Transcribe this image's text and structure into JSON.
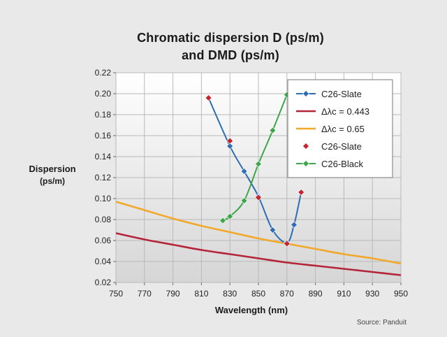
{
  "chart_data": {
    "type": "line",
    "title": "Chromatic dispersion D (ps/m)",
    "subtitle": "and DMD (ps/m)",
    "ylabel": "Dispersion",
    "ylabel_unit": "(ps/m)",
    "xlabel": "Wavelength (nm)",
    "source": "Source: Panduit",
    "xlim": [
      750,
      950
    ],
    "ylim": [
      0.02,
      0.22
    ],
    "x_ticks": [
      750,
      770,
      790,
      810,
      830,
      850,
      870,
      890,
      910,
      930,
      950
    ],
    "y_ticks": [
      0.02,
      0.04,
      0.06,
      0.08,
      0.1,
      0.12,
      0.14,
      0.16,
      0.18,
      0.2,
      0.22
    ],
    "grid": true,
    "legend_position": "top-right",
    "series": [
      {
        "name": "C26-Slate",
        "style": "line-markers",
        "marker": "diamond",
        "color": "#2e6db0",
        "x": [
          815,
          830,
          840,
          850,
          860,
          870,
          875,
          880
        ],
        "y": [
          0.196,
          0.15,
          0.126,
          0.102,
          0.07,
          0.058,
          0.075,
          0.106
        ]
      },
      {
        "name": "Δλc = 0.443",
        "style": "line",
        "color": "#b5253a",
        "x": [
          750,
          770,
          790,
          810,
          830,
          850,
          870,
          890,
          910,
          930,
          950
        ],
        "y": [
          0.067,
          0.061,
          0.056,
          0.051,
          0.047,
          0.043,
          0.039,
          0.036,
          0.033,
          0.03,
          0.027
        ]
      },
      {
        "name": "Δλc = 0.65",
        "style": "line",
        "color": "#f0a92a",
        "x": [
          750,
          770,
          790,
          810,
          830,
          850,
          870,
          890,
          910,
          930,
          950
        ],
        "y": [
          0.097,
          0.089,
          0.081,
          0.074,
          0.068,
          0.062,
          0.057,
          0.052,
          0.047,
          0.043,
          0.038
        ]
      },
      {
        "name": "C26-Slate",
        "style": "markers",
        "marker": "diamond",
        "color": "#c4262e",
        "x": [
          815,
          830,
          850,
          870,
          880
        ],
        "y": [
          0.196,
          0.155,
          0.101,
          0.057,
          0.106
        ]
      },
      {
        "name": "C26-Black",
        "style": "line-markers",
        "marker": "diamond",
        "color": "#3ea64a",
        "x": [
          825,
          830,
          840,
          850,
          860,
          870
        ],
        "y": [
          0.079,
          0.083,
          0.098,
          0.133,
          0.165,
          0.199
        ]
      }
    ]
  }
}
